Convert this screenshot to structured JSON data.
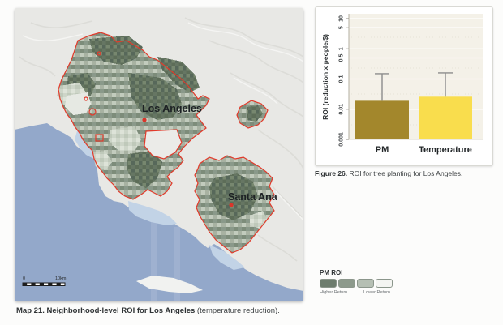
{
  "map": {
    "city_labels": {
      "los_angeles": "Los Angeles",
      "santa_ana": "Santa Ana"
    },
    "scale_bar": {
      "zero": "0",
      "max": "10km"
    },
    "caption_bold": "Map 21. Neighborhood-level ROI for Los Angeles",
    "caption_rest": " (temperature reduction).",
    "colors": {
      "terrain": "#e8e8e5",
      "ocean": "#93a8ca",
      "coastal_water": "#c2d3e6",
      "boundary_red": "#e23a2b",
      "roi_dark": "#5d6d5c",
      "roi_medium": "#7f8f7d",
      "roi_light": "#aab4a6",
      "roi_pale": "#cdd5ca"
    }
  },
  "chart": {
    "caption_bold": "Figure 26.",
    "caption_rest": " ROI for tree planting for Los Angeles.",
    "colors": {
      "pm_bar": "#a3872c",
      "temperature_bar": "#f9dd4d",
      "plot_bg": "#f4f1e8",
      "error_bar": "#8c8c8c"
    }
  },
  "chart_data": {
    "type": "bar",
    "title": "",
    "ylabel": "ROI (reduction x people/$)",
    "xlabel": "",
    "yscale": "log",
    "ylim": [
      0.001,
      10
    ],
    "categories": [
      "PM",
      "Temperature"
    ],
    "values": [
      0.019,
      0.026
    ],
    "upper_errors": [
      0.15,
      0.16
    ],
    "yticks": [
      0.001,
      0.01,
      0.1,
      0.5,
      1,
      5,
      10
    ],
    "ytick_labels": [
      "0.001",
      "0.01",
      "0.1",
      "0.5",
      "1",
      "5",
      "10"
    ],
    "grid": true,
    "legend_position": "none"
  },
  "legend": {
    "title": "PM ROI",
    "higher_label": "Higher Return",
    "lower_label": "Lower Return",
    "swatches": [
      "#6e7d6e",
      "#8d9a8c",
      "#b5bfb3",
      "#f4f5f2"
    ]
  }
}
